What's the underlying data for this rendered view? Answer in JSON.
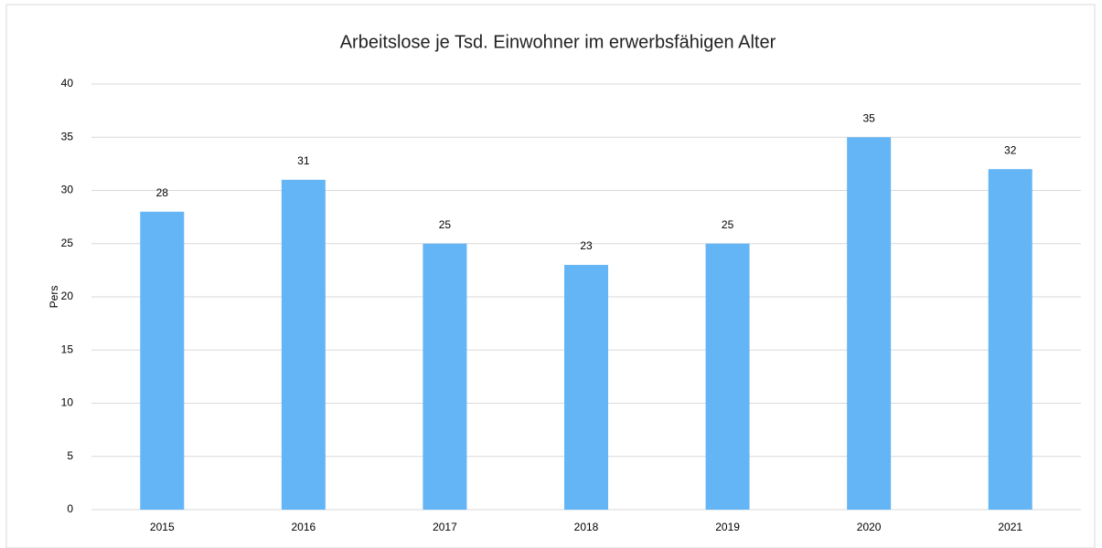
{
  "chart_data": {
    "type": "bar",
    "title": "Arbeitslose je Tsd. Einwohner im erwerbsfähigen Alter",
    "y_label": "Pers",
    "categories": [
      "2015",
      "2016",
      "2017",
      "2018",
      "2019",
      "2020",
      "2021"
    ],
    "values": [
      28,
      31,
      25,
      23,
      25,
      35,
      32
    ],
    "color": "#64b5f6",
    "ylim": [
      0,
      40
    ],
    "yticks": [
      0,
      5,
      10,
      15,
      20,
      25,
      30,
      35,
      40
    ],
    "grid": true,
    "data_labels": true
  }
}
